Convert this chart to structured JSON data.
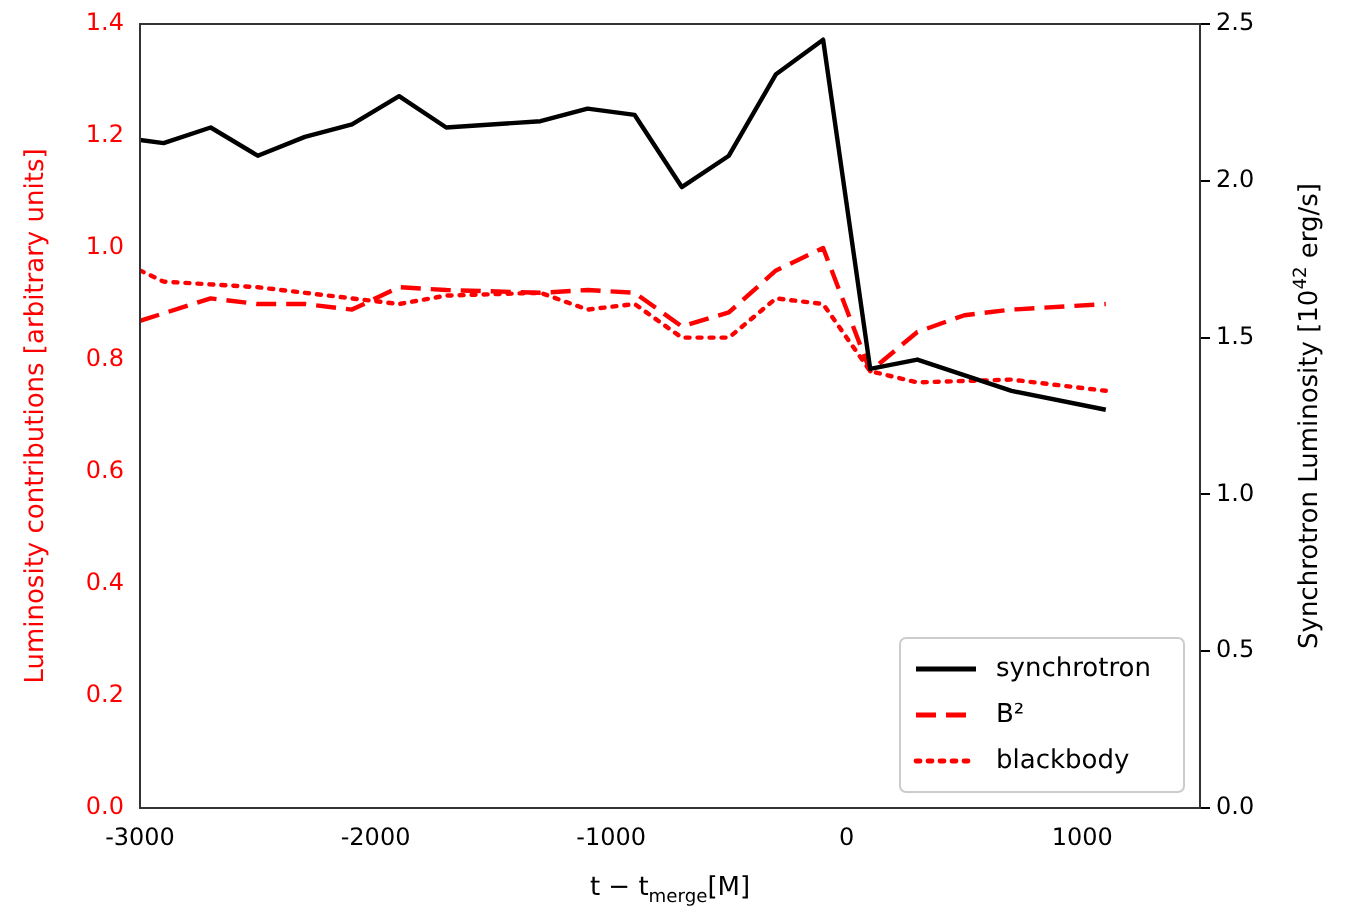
{
  "chart_data": {
    "type": "line",
    "xlabel": "t − t$_{merge}$[M]",
    "ylabel": "Luminosity contributions [arbitrary units]",
    "y2label": "Synchrotron Luminosity [10$^{42}$ erg/s]",
    "xlim": [
      -3000,
      1500
    ],
    "xticks": [
      -3000,
      -2000,
      -1000,
      0,
      1000
    ],
    "ylim": [
      0,
      1.4
    ],
    "yticks": [
      {
        "value": 0,
        "label": "0.0"
      },
      0.2,
      0.4,
      0.6,
      0.8,
      {
        "value": 1,
        "label": "1.0"
      },
      1.2,
      1.4
    ],
    "y2lim": [
      0,
      2.5
    ],
    "y2ticks": [
      {
        "value": 0,
        "label": "0.0"
      },
      0.5,
      {
        "value": 1,
        "label": "1.0"
      },
      1.5,
      {
        "value": 2,
        "label": "2.0"
      },
      2.5
    ],
    "legend": "bottom right",
    "grid": false,
    "marker": "none",
    "series": [
      {
        "name": "synchrotron",
        "color": "#000000",
        "axis": "y2",
        "line_style": "solid",
        "x": [
          -3000,
          -2900,
          -2700,
          -2500,
          -2300,
          -2100,
          -1900,
          -1700,
          -1300,
          -1100,
          -900,
          -700,
          -500,
          -300,
          -100,
          100,
          300,
          700,
          1100
        ],
        "values": [
          2.13,
          2.12,
          2.17,
          2.08,
          2.14,
          2.18,
          2.27,
          2.17,
          2.19,
          2.23,
          2.21,
          1.98,
          2.08,
          2.34,
          2.45,
          1.4,
          1.43,
          1.33,
          1.27
        ]
      },
      {
        "name": "B²",
        "color": "#ff0000",
        "line_style": "dashed",
        "x": [
          -3000,
          -2700,
          -2500,
          -2300,
          -2100,
          -1900,
          -1700,
          -1300,
          -1100,
          -900,
          -700,
          -500,
          -300,
          -100,
          100,
          300,
          500,
          700,
          1100
        ],
        "values": [
          0.87,
          0.91,
          0.9,
          0.9,
          0.89,
          0.93,
          0.925,
          0.92,
          0.925,
          0.92,
          0.86,
          0.885,
          0.96,
          1.0,
          0.78,
          0.85,
          0.88,
          0.89,
          0.9
        ]
      },
      {
        "name": "blackbody",
        "color": "#ff0000",
        "line_style": "dotted",
        "x": [
          -3000,
          -2900,
          -2500,
          -2300,
          -2100,
          -1900,
          -1700,
          -1300,
          -1100,
          -900,
          -700,
          -500,
          -300,
          -100,
          100,
          300,
          700,
          1100
        ],
        "values": [
          0.96,
          0.94,
          0.93,
          0.92,
          0.91,
          0.9,
          0.915,
          0.92,
          0.89,
          0.9,
          0.84,
          0.84,
          0.91,
          0.9,
          0.78,
          0.76,
          0.765,
          0.745
        ]
      }
    ]
  }
}
